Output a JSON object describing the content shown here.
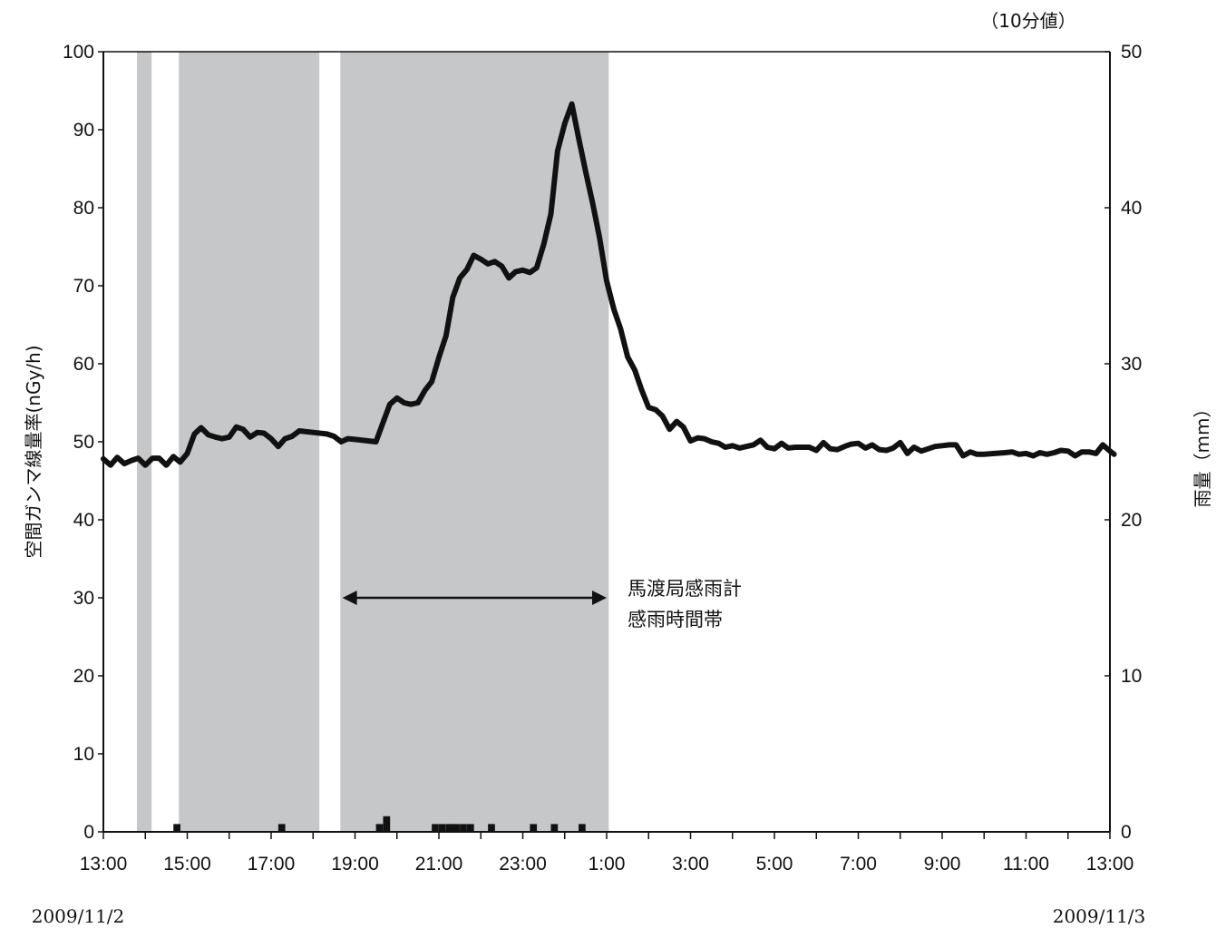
{
  "chart_data": {
    "type": "line",
    "unit_note": "（10分値）",
    "ylabel_left": "空間ガンマ線量率(nGy/h)",
    "ylabel_right": "雨量（mm）",
    "ylim_left": [
      0,
      100
    ],
    "ylim_right": [
      0,
      50
    ],
    "y_ticks_left": [
      "0",
      "10",
      "20",
      "30",
      "40",
      "50",
      "60",
      "70",
      "80",
      "90",
      "100"
    ],
    "y_ticks_right": [
      "0",
      "10",
      "20",
      "30",
      "40",
      "50"
    ],
    "x_range_hours": [
      13,
      37
    ],
    "x_ticks": [
      {
        "h": 13,
        "label": "13:00"
      },
      {
        "h": 15,
        "label": "15:00"
      },
      {
        "h": 17,
        "label": "17:00"
      },
      {
        "h": 19,
        "label": "19:00"
      },
      {
        "h": 21,
        "label": "21:00"
      },
      {
        "h": 23,
        "label": "23:00"
      },
      {
        "h": 25,
        "label": "1:00"
      },
      {
        "h": 27,
        "label": "3:00"
      },
      {
        "h": 29,
        "label": "5:00"
      },
      {
        "h": 31,
        "label": "7:00"
      },
      {
        "h": 33,
        "label": "9:00"
      },
      {
        "h": 35,
        "label": "11:00"
      },
      {
        "h": 37,
        "label": "13:00"
      }
    ],
    "date_start": "2009/11/2",
    "date_end": "2009/11/3",
    "rain_periods": [
      [
        13.8,
        14.15
      ],
      [
        14.8,
        18.15
      ],
      [
        18.65,
        25.05
      ]
    ],
    "annotation": {
      "line1": "馬渡局感雨計",
      "line2": "感雨時間帯",
      "arrow_from": 18.7,
      "arrow_to": 25.0,
      "arrow_y": 30
    },
    "gamma_dose_rate": [
      [
        13.0,
        47.8
      ],
      [
        13.17,
        47.0
      ],
      [
        13.33,
        48.0
      ],
      [
        13.5,
        47.2
      ],
      [
        13.67,
        47.6
      ],
      [
        13.83,
        47.9
      ],
      [
        14.0,
        47.0
      ],
      [
        14.17,
        47.9
      ],
      [
        14.33,
        47.9
      ],
      [
        14.5,
        47.0
      ],
      [
        14.67,
        48.1
      ],
      [
        14.83,
        47.4
      ],
      [
        15.0,
        48.5
      ],
      [
        15.17,
        51.0
      ],
      [
        15.33,
        51.8
      ],
      [
        15.5,
        50.9
      ],
      [
        15.67,
        50.6
      ],
      [
        15.83,
        50.4
      ],
      [
        16.0,
        50.6
      ],
      [
        16.17,
        51.9
      ],
      [
        16.33,
        51.6
      ],
      [
        16.5,
        50.6
      ],
      [
        16.67,
        51.2
      ],
      [
        16.83,
        51.1
      ],
      [
        17.0,
        50.4
      ],
      [
        17.17,
        49.4
      ],
      [
        17.33,
        50.4
      ],
      [
        17.5,
        50.7
      ],
      [
        17.67,
        51.4
      ],
      [
        18.0,
        51.2
      ],
      [
        18.33,
        51.0
      ],
      [
        18.5,
        50.7
      ],
      [
        18.67,
        50.0
      ],
      [
        18.83,
        50.4
      ],
      [
        19.0,
        50.3
      ],
      [
        19.33,
        50.1
      ],
      [
        19.5,
        50.0
      ],
      [
        19.67,
        52.5
      ],
      [
        19.83,
        54.8
      ],
      [
        20.0,
        55.6
      ],
      [
        20.17,
        55.0
      ],
      [
        20.33,
        54.8
      ],
      [
        20.5,
        55.0
      ],
      [
        20.67,
        56.6
      ],
      [
        20.83,
        57.7
      ],
      [
        21.0,
        60.8
      ],
      [
        21.17,
        63.6
      ],
      [
        21.33,
        68.5
      ],
      [
        21.5,
        71.0
      ],
      [
        21.67,
        72.1
      ],
      [
        21.83,
        73.9
      ],
      [
        22.0,
        73.4
      ],
      [
        22.17,
        72.8
      ],
      [
        22.33,
        73.1
      ],
      [
        22.5,
        72.5
      ],
      [
        22.67,
        71.0
      ],
      [
        22.83,
        71.8
      ],
      [
        23.0,
        72.0
      ],
      [
        23.17,
        71.7
      ],
      [
        23.33,
        72.3
      ],
      [
        23.5,
        75.3
      ],
      [
        23.67,
        79.2
      ],
      [
        23.83,
        87.3
      ],
      [
        24.0,
        90.8
      ],
      [
        24.17,
        93.3
      ],
      [
        24.33,
        89.0
      ],
      [
        24.5,
        84.6
      ],
      [
        24.67,
        80.5
      ],
      [
        24.83,
        76.2
      ],
      [
        25.0,
        70.6
      ],
      [
        25.17,
        67.0
      ],
      [
        25.33,
        64.5
      ],
      [
        25.5,
        60.9
      ],
      [
        25.67,
        59.2
      ],
      [
        25.83,
        56.7
      ],
      [
        26.0,
        54.4
      ],
      [
        26.17,
        54.1
      ],
      [
        26.33,
        53.3
      ],
      [
        26.5,
        51.6
      ],
      [
        26.67,
        52.6
      ],
      [
        26.83,
        51.9
      ],
      [
        27.0,
        50.1
      ],
      [
        27.17,
        50.5
      ],
      [
        27.33,
        50.4
      ],
      [
        27.5,
        50.0
      ],
      [
        27.67,
        49.8
      ],
      [
        27.83,
        49.3
      ],
      [
        28.0,
        49.5
      ],
      [
        28.17,
        49.2
      ],
      [
        28.33,
        49.4
      ],
      [
        28.5,
        49.6
      ],
      [
        28.67,
        50.2
      ],
      [
        28.83,
        49.3
      ],
      [
        29.0,
        49.1
      ],
      [
        29.17,
        49.8
      ],
      [
        29.33,
        49.2
      ],
      [
        29.5,
        49.3
      ],
      [
        29.67,
        49.3
      ],
      [
        29.83,
        49.3
      ],
      [
        30.0,
        48.9
      ],
      [
        30.17,
        49.9
      ],
      [
        30.33,
        49.1
      ],
      [
        30.5,
        49.0
      ],
      [
        30.67,
        49.4
      ],
      [
        30.83,
        49.7
      ],
      [
        31.0,
        49.8
      ],
      [
        31.17,
        49.2
      ],
      [
        31.33,
        49.6
      ],
      [
        31.5,
        49.0
      ],
      [
        31.67,
        48.9
      ],
      [
        31.83,
        49.2
      ],
      [
        32.0,
        49.9
      ],
      [
        32.17,
        48.5
      ],
      [
        32.33,
        49.3
      ],
      [
        32.5,
        48.8
      ],
      [
        32.67,
        49.1
      ],
      [
        32.83,
        49.4
      ],
      [
        33.0,
        49.5
      ],
      [
        33.17,
        49.6
      ],
      [
        33.33,
        49.6
      ],
      [
        33.5,
        48.2
      ],
      [
        33.67,
        48.7
      ],
      [
        33.83,
        48.4
      ],
      [
        34.0,
        48.4
      ],
      [
        34.5,
        48.6
      ],
      [
        34.67,
        48.7
      ],
      [
        34.83,
        48.4
      ],
      [
        35.0,
        48.5
      ],
      [
        35.17,
        48.2
      ],
      [
        35.33,
        48.6
      ],
      [
        35.5,
        48.4
      ],
      [
        35.67,
        48.6
      ],
      [
        35.83,
        48.9
      ],
      [
        36.0,
        48.8
      ],
      [
        36.17,
        48.2
      ],
      [
        36.33,
        48.7
      ],
      [
        36.5,
        48.7
      ],
      [
        36.67,
        48.5
      ],
      [
        36.83,
        49.6
      ],
      [
        37.0,
        48.8
      ],
      [
        37.1,
        48.4
      ]
    ],
    "rainfall": [
      [
        14.67,
        0.5
      ],
      [
        17.17,
        0.5
      ],
      [
        19.5,
        0.5
      ],
      [
        19.67,
        1.0
      ],
      [
        20.83,
        0.5
      ],
      [
        21.0,
        0.5
      ],
      [
        21.17,
        0.5
      ],
      [
        21.33,
        0.5
      ],
      [
        21.5,
        0.5
      ],
      [
        21.67,
        0.5
      ],
      [
        22.17,
        0.5
      ],
      [
        23.17,
        0.5
      ],
      [
        23.67,
        0.5
      ],
      [
        24.33,
        0.5
      ]
    ]
  }
}
